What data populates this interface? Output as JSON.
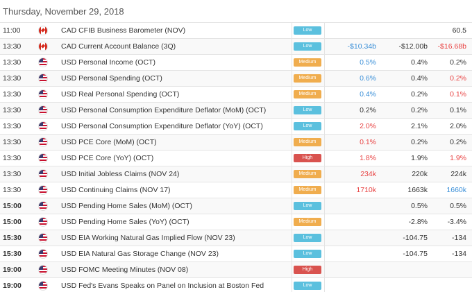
{
  "title": "Thursday, November 29, 2018",
  "colors": {
    "low": "#5bc0de",
    "medium": "#f0ad4e",
    "high": "#d9534f",
    "positive": "#3a8fd8",
    "negative": "#e84343"
  },
  "rows": [
    {
      "time": "11:00",
      "bold": false,
      "flag": "canada-flag-icon",
      "event": "CAD CFIB Business Barometer (NOV)",
      "importance": "Low",
      "actual": "",
      "actual_tone": "neu",
      "forecast": "",
      "previous": "60.5",
      "previous_tone": "neu"
    },
    {
      "time": "13:30",
      "bold": false,
      "flag": "canada-flag-icon",
      "event": "CAD Current Account Balance (3Q)",
      "importance": "Low",
      "actual": "-$10.34b",
      "actual_tone": "pos",
      "forecast": "-$12.00b",
      "previous": "-$16.68b",
      "previous_tone": "neg"
    },
    {
      "time": "13:30",
      "bold": false,
      "flag": "us-flag-icon",
      "event": "USD Personal Income (OCT)",
      "importance": "Medium",
      "actual": "0.5%",
      "actual_tone": "pos",
      "forecast": "0.4%",
      "previous": "0.2%",
      "previous_tone": "neu"
    },
    {
      "time": "13:30",
      "bold": false,
      "flag": "us-flag-icon",
      "event": "USD Personal Spending (OCT)",
      "importance": "Medium",
      "actual": "0.6%",
      "actual_tone": "pos",
      "forecast": "0.4%",
      "previous": "0.2%",
      "previous_tone": "neg"
    },
    {
      "time": "13:30",
      "bold": false,
      "flag": "us-flag-icon",
      "event": "USD Real Personal Spending (OCT)",
      "importance": "Medium",
      "actual": "0.4%",
      "actual_tone": "pos",
      "forecast": "0.2%",
      "previous": "0.1%",
      "previous_tone": "neg"
    },
    {
      "time": "13:30",
      "bold": false,
      "flag": "us-flag-icon",
      "event": "USD Personal Consumption Expenditure Deflator (MoM) (OCT)",
      "importance": "Low",
      "actual": "0.2%",
      "actual_tone": "neu",
      "forecast": "0.2%",
      "previous": "0.1%",
      "previous_tone": "neu"
    },
    {
      "time": "13:30",
      "bold": false,
      "flag": "us-flag-icon",
      "event": "USD Personal Consumption Expenditure Deflator (YoY) (OCT)",
      "importance": "Low",
      "actual": "2.0%",
      "actual_tone": "neg",
      "forecast": "2.1%",
      "previous": "2.0%",
      "previous_tone": "neu"
    },
    {
      "time": "13:30",
      "bold": false,
      "flag": "us-flag-icon",
      "event": "USD PCE Core (MoM) (OCT)",
      "importance": "Medium",
      "actual": "0.1%",
      "actual_tone": "neg",
      "forecast": "0.2%",
      "previous": "0.2%",
      "previous_tone": "neu"
    },
    {
      "time": "13:30",
      "bold": false,
      "flag": "us-flag-icon",
      "event": "USD PCE Core (YoY) (OCT)",
      "importance": "High",
      "actual": "1.8%",
      "actual_tone": "neg",
      "forecast": "1.9%",
      "previous": "1.9%",
      "previous_tone": "neg"
    },
    {
      "time": "13:30",
      "bold": false,
      "flag": "us-flag-icon",
      "event": "USD Initial Jobless Claims (NOV 24)",
      "importance": "Medium",
      "actual": "234k",
      "actual_tone": "neg",
      "forecast": "220k",
      "previous": "224k",
      "previous_tone": "neu"
    },
    {
      "time": "13:30",
      "bold": false,
      "flag": "us-flag-icon",
      "event": "USD Continuing Claims (NOV 17)",
      "importance": "Medium",
      "actual": "1710k",
      "actual_tone": "neg",
      "forecast": "1663k",
      "previous": "1660k",
      "previous_tone": "pos"
    },
    {
      "time": "15:00",
      "bold": true,
      "flag": "us-flag-icon",
      "event": "USD Pending Home Sales (MoM) (OCT)",
      "importance": "Low",
      "actual": "",
      "actual_tone": "neu",
      "forecast": "0.5%",
      "previous": "0.5%",
      "previous_tone": "neu"
    },
    {
      "time": "15:00",
      "bold": true,
      "flag": "us-flag-icon",
      "event": "USD Pending Home Sales (YoY) (OCT)",
      "importance": "Medium",
      "actual": "",
      "actual_tone": "neu",
      "forecast": "-2.8%",
      "previous": "-3.4%",
      "previous_tone": "neu"
    },
    {
      "time": "15:30",
      "bold": true,
      "flag": "us-flag-icon",
      "event": "USD EIA Working Natural Gas Implied Flow (NOV 23)",
      "importance": "Low",
      "actual": "",
      "actual_tone": "neu",
      "forecast": "-104.75",
      "previous": "-134",
      "previous_tone": "neu"
    },
    {
      "time": "15:30",
      "bold": true,
      "flag": "us-flag-icon",
      "event": "USD EIA Natural Gas Storage Change (NOV 23)",
      "importance": "Low",
      "actual": "",
      "actual_tone": "neu",
      "forecast": "-104.75",
      "previous": "-134",
      "previous_tone": "neu"
    },
    {
      "time": "19:00",
      "bold": true,
      "flag": "us-flag-icon",
      "event": "USD FOMC Meeting Minutes (NOV 08)",
      "importance": "High",
      "actual": "",
      "actual_tone": "neu",
      "forecast": "",
      "previous": "",
      "previous_tone": "neu"
    },
    {
      "time": "19:00",
      "bold": true,
      "flag": "us-flag-icon",
      "event": "USD Fed's Evans Speaks on Panel on Inclusion at Boston Fed",
      "importance": "Low",
      "actual": "",
      "actual_tone": "neu",
      "forecast": "",
      "previous": "",
      "previous_tone": "neu"
    }
  ]
}
